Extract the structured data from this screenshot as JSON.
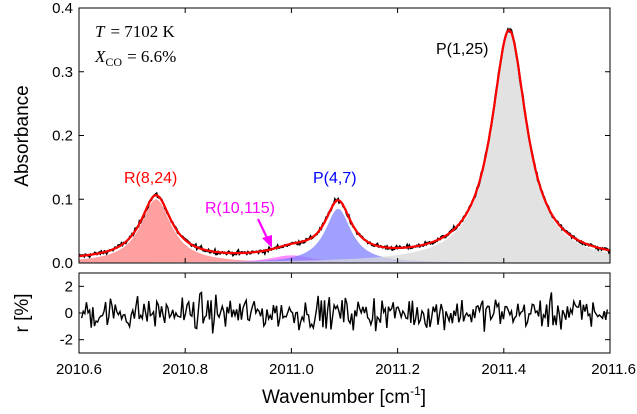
{
  "chart_data": [
    {
      "type": "area",
      "ylabel": "Absorbance",
      "ylim": [
        0,
        0.4
      ],
      "yticks": [
        "0.0",
        "0.1",
        "0.2",
        "0.3",
        "0.4"
      ],
      "xlim": [
        2010.6,
        2011.6
      ],
      "conditions": {
        "T_symbol": "T",
        "T_value": "= 7102 K",
        "X_symbol": "X",
        "X_subscript": "CO",
        "X_value": "= 6.6%"
      },
      "lines": [
        {
          "label": "R(8,24)",
          "color": "#ff0000",
          "fill": "#ff8080",
          "center": 2010.745,
          "peak": 0.1,
          "width": 0.035
        },
        {
          "label": "R(10,115)",
          "color": "#ff00ff",
          "fill": "#ff66ff",
          "center": 2011.0,
          "peak": 0.012,
          "width": 0.05
        },
        {
          "label": "P(4,7)",
          "color": "#0000ff",
          "fill": "#8080ff",
          "center": 2011.088,
          "peak": 0.085,
          "width": 0.03
        },
        {
          "label": "P(1,25)",
          "color": "#000000",
          "fill": "#d8d8d8",
          "center": 2011.41,
          "peak": 0.36,
          "width": 0.04
        }
      ],
      "fit_color": "#ff0000",
      "measured_color": "#000000",
      "arrow_target": [
        2010.97,
        0.012
      ]
    },
    {
      "type": "line",
      "xlabel_main": "Wavenumber [cm",
      "xlabel_sup": "-1",
      "xlabel_end": "]",
      "ylabel": "r [%]",
      "ylim": [
        -3,
        3
      ],
      "yticks": [
        "-2",
        "0",
        "2"
      ],
      "xlim": [
        2010.6,
        2011.6
      ],
      "xticks": [
        "2010.6",
        "2010.8",
        "2011.0",
        "2011.2",
        "2011.4",
        "2011.6"
      ],
      "series_color": "#000000",
      "x_start": 2010.605,
      "x_end": 2011.595,
      "n_points": 330
    }
  ]
}
